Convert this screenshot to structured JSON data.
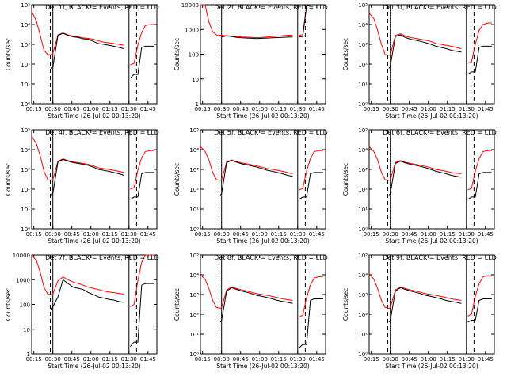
{
  "xlabel": "Start Time (26-Jul-02 00:13:20)",
  "ylabel": "Counts/sec",
  "x_ticks": [
    "00:15",
    "00:30",
    "00:45",
    "01:00",
    "01:15",
    "01:30",
    "01:45"
  ],
  "colors": {
    "events": "#000000",
    "lld": "#ff0000"
  },
  "chart_data": [
    {
      "type": "line",
      "title": "Det 1f, BLACK = Events, RED = LLD",
      "yscale": "log",
      "ylim": [
        1,
        100000
      ],
      "y_ticks": [
        "10⁰",
        "10¹",
        "10²",
        "10³",
        "10⁴",
        "10⁵"
      ],
      "y_tick_values": [
        1,
        10,
        100,
        1000,
        10000,
        100000
      ],
      "x": [
        "00:13",
        "00:17",
        "00:20",
        "00:23",
        "00:26",
        "00:29",
        "00:30",
        "00:34",
        "00:38",
        "00:42",
        "00:46",
        "00:50",
        "00:54",
        "00:58",
        "01:02",
        "01:06",
        "01:10",
        "01:14",
        "01:18",
        "01:22",
        "01:26",
        "01:30",
        "01:31",
        "01:34",
        "01:37",
        "01:40",
        "01:43",
        "01:47",
        "01:50"
      ],
      "series": [
        {
          "name": "Events",
          "color": "#000000",
          "values": [
            null,
            null,
            null,
            null,
            null,
            60,
            70,
            2800,
            3600,
            2800,
            2400,
            2200,
            1900,
            1800,
            1400,
            1100,
            1000,
            900,
            800,
            700,
            600,
            null,
            20,
            30,
            30,
            700,
            800,
            800,
            800
          ]
        },
        {
          "name": "LLD",
          "color": "#ff0000",
          "values": [
            50000,
            15000,
            3000,
            500,
            300,
            300,
            330,
            3000,
            3800,
            3000,
            2600,
            2400,
            2100,
            2000,
            1800,
            1500,
            1300,
            1200,
            1100,
            1000,
            900,
            null,
            90,
            110,
            900,
            4000,
            9000,
            10000,
            10000
          ]
        }
      ]
    },
    {
      "type": "line",
      "title": "Det 2f, BLACK = Events, RED = LLD",
      "yscale": "log",
      "ylim": [
        1,
        10000
      ],
      "y_ticks": [
        "1",
        "10",
        "100",
        "1000",
        "10000"
      ],
      "y_tick_values": [
        1,
        10,
        100,
        1000,
        10000
      ],
      "x": [
        "00:13",
        "00:17",
        "00:20",
        "00:23",
        "00:26",
        "00:29",
        "00:30",
        "00:34",
        "00:38",
        "00:42",
        "00:46",
        "00:50",
        "00:54",
        "00:58",
        "01:02",
        "01:06",
        "01:10",
        "01:14",
        "01:18",
        "01:22",
        "01:26",
        "01:30",
        "01:31",
        "01:34",
        "01:37",
        "01:40",
        "01:43",
        "01:47",
        "01:50"
      ],
      "series": [
        {
          "name": "Events",
          "color": "#000000",
          "values": [
            null,
            null,
            null,
            null,
            null,
            null,
            500,
            550,
            520,
            480,
            460,
            450,
            440,
            430,
            440,
            450,
            460,
            470,
            480,
            490,
            500,
            null,
            500,
            520,
            9000,
            10000,
            10000,
            10000,
            10000
          ]
        },
        {
          "name": "LLD",
          "color": "#ff0000",
          "values": [
            10000,
            10000,
            2000,
            800,
            600,
            580,
            580,
            560,
            540,
            520,
            500,
            490,
            480,
            470,
            480,
            500,
            520,
            540,
            560,
            580,
            600,
            null,
            580,
            620,
            9000,
            10000,
            10000,
            10000,
            10000
          ]
        }
      ]
    },
    {
      "type": "line",
      "title": "Det 3f, BLACK = Events, RED = LLD",
      "yscale": "log",
      "ylim": [
        1,
        100000
      ],
      "y_ticks": [
        "10⁰",
        "10¹",
        "10²",
        "10³",
        "10⁴",
        "10⁵"
      ],
      "y_tick_values": [
        1,
        10,
        100,
        1000,
        10000,
        100000
      ],
      "x": [
        "00:13",
        "00:17",
        "00:20",
        "00:23",
        "00:26",
        "00:29",
        "00:30",
        "00:34",
        "00:38",
        "00:42",
        "00:46",
        "00:50",
        "00:54",
        "00:58",
        "01:02",
        "01:06",
        "01:10",
        "01:14",
        "01:18",
        "01:22",
        "01:26",
        "01:30",
        "01:31",
        "01:34",
        "01:37",
        "01:40",
        "01:43",
        "01:47",
        "01:50"
      ],
      "series": [
        {
          "name": "Events",
          "color": "#000000",
          "values": [
            null,
            null,
            null,
            null,
            null,
            60,
            80,
            2500,
            3000,
            2200,
            1800,
            1600,
            1400,
            1200,
            1000,
            800,
            700,
            600,
            500,
            450,
            400,
            null,
            30,
            40,
            40,
            700,
            800,
            800,
            800
          ]
        },
        {
          "name": "LLD",
          "color": "#ff0000",
          "values": [
            40000,
            20000,
            5000,
            1000,
            300,
            280,
            300,
            2800,
            3400,
            2600,
            2200,
            2000,
            1800,
            1600,
            1400,
            1100,
            1000,
            900,
            800,
            700,
            600,
            null,
            110,
            130,
            1000,
            5000,
            10000,
            12000,
            12000
          ]
        }
      ]
    },
    {
      "type": "line",
      "title": "Det 4f, BLACK = Events, RED = LLD",
      "yscale": "log",
      "ylim": [
        1,
        100000
      ],
      "y_ticks": [
        "10⁰",
        "10¹",
        "10²",
        "10³",
        "10⁴",
        "10⁵"
      ],
      "y_tick_values": [
        1,
        10,
        100,
        1000,
        10000,
        100000
      ],
      "x": [
        "00:13",
        "00:17",
        "00:20",
        "00:23",
        "00:26",
        "00:29",
        "00:30",
        "00:34",
        "00:38",
        "00:42",
        "00:46",
        "00:50",
        "00:54",
        "00:58",
        "01:02",
        "01:06",
        "01:10",
        "01:14",
        "01:18",
        "01:22",
        "01:26",
        "01:30",
        "01:31",
        "01:34",
        "01:37",
        "01:40",
        "01:43",
        "01:47",
        "01:50"
      ],
      "series": [
        {
          "name": "Events",
          "color": "#000000",
          "values": [
            null,
            null,
            null,
            null,
            null,
            50,
            60,
            2400,
            3200,
            2600,
            2200,
            2000,
            1800,
            1600,
            1300,
            1000,
            900,
            800,
            700,
            600,
            500,
            null,
            30,
            40,
            40,
            600,
            700,
            700,
            700
          ]
        },
        {
          "name": "LLD",
          "color": "#ff0000",
          "values": [
            50000,
            20000,
            5000,
            800,
            300,
            280,
            300,
            2600,
            3400,
            2800,
            2400,
            2200,
            2000,
            1800,
            1500,
            1200,
            1100,
            1000,
            900,
            800,
            700,
            null,
            100,
            120,
            900,
            4000,
            8000,
            9000,
            9000
          ]
        }
      ]
    },
    {
      "type": "line",
      "title": "Det 5f, BLACK = Events, RED = LLD",
      "yscale": "log",
      "ylim": [
        1,
        100000
      ],
      "y_ticks": [
        "10⁰",
        "10¹",
        "10²",
        "10³",
        "10⁴",
        "10⁵"
      ],
      "y_tick_values": [
        1,
        10,
        100,
        1000,
        10000,
        100000
      ],
      "x": [
        "00:13",
        "00:17",
        "00:20",
        "00:23",
        "00:26",
        "00:29",
        "00:30",
        "00:34",
        "00:38",
        "00:42",
        "00:46",
        "00:50",
        "00:54",
        "00:58",
        "01:02",
        "01:06",
        "01:10",
        "01:14",
        "01:18",
        "01:22",
        "01:26",
        "01:30",
        "01:31",
        "01:34",
        "01:37",
        "01:40",
        "01:43",
        "01:47",
        "01:50"
      ],
      "series": [
        {
          "name": "Events",
          "color": "#000000",
          "values": [
            null,
            null,
            null,
            null,
            null,
            50,
            60,
            2200,
            2800,
            2300,
            1900,
            1700,
            1500,
            1300,
            1100,
            900,
            800,
            700,
            600,
            500,
            450,
            null,
            30,
            40,
            40,
            600,
            700,
            700,
            700
          ]
        },
        {
          "name": "LLD",
          "color": "#ff0000",
          "values": [
            15000,
            8000,
            3000,
            700,
            300,
            280,
            300,
            2400,
            3000,
            2500,
            2100,
            1900,
            1700,
            1500,
            1300,
            1100,
            1000,
            900,
            800,
            700,
            600,
            null,
            90,
            110,
            800,
            3500,
            8000,
            9000,
            9000
          ]
        }
      ]
    },
    {
      "type": "line",
      "title": "Det 6f, BLACK = Events, RED = LLD",
      "yscale": "log",
      "ylim": [
        1,
        100000
      ],
      "y_ticks": [
        "10⁰",
        "10¹",
        "10²",
        "10³",
        "10⁴",
        "10⁵"
      ],
      "y_tick_values": [
        1,
        10,
        100,
        1000,
        10000,
        100000
      ],
      "x": [
        "00:13",
        "00:17",
        "00:20",
        "00:23",
        "00:26",
        "00:29",
        "00:30",
        "00:34",
        "00:38",
        "00:42",
        "00:46",
        "00:50",
        "00:54",
        "00:58",
        "01:02",
        "01:06",
        "01:10",
        "01:14",
        "01:18",
        "01:22",
        "01:26",
        "01:30",
        "01:31",
        "01:34",
        "01:37",
        "01:40",
        "01:43",
        "01:47",
        "01:50"
      ],
      "series": [
        {
          "name": "Events",
          "color": "#000000",
          "values": [
            null,
            null,
            null,
            null,
            null,
            50,
            60,
            2000,
            2600,
            2100,
            1800,
            1600,
            1400,
            1200,
            1000,
            800,
            700,
            600,
            500,
            450,
            400,
            null,
            30,
            40,
            40,
            600,
            700,
            700,
            700
          ]
        },
        {
          "name": "LLD",
          "color": "#ff0000",
          "values": [
            15000,
            8000,
            3000,
            700,
            300,
            280,
            300,
            2200,
            2800,
            2300,
            2000,
            1800,
            1600,
            1400,
            1200,
            1000,
            900,
            800,
            700,
            650,
            600,
            null,
            90,
            110,
            800,
            3500,
            8000,
            9000,
            9000
          ]
        }
      ]
    },
    {
      "type": "line",
      "title": "Det 7f, BLACK = Events, RED = LLD",
      "yscale": "log",
      "ylim": [
        1,
        10000
      ],
      "y_ticks": [
        "1",
        "10",
        "100",
        "1000",
        "10000"
      ],
      "y_tick_values": [
        1,
        10,
        100,
        1000,
        10000
      ],
      "x": [
        "00:13",
        "00:17",
        "00:20",
        "00:23",
        "00:26",
        "00:29",
        "00:30",
        "00:34",
        "00:38",
        "00:42",
        "00:46",
        "00:50",
        "00:54",
        "00:58",
        "01:02",
        "01:06",
        "01:10",
        "01:14",
        "01:18",
        "01:22",
        "01:26",
        "01:30",
        "01:31",
        "01:34",
        "01:37",
        "01:40",
        "01:43",
        "01:47",
        "01:50"
      ],
      "series": [
        {
          "name": "Events",
          "color": "#000000",
          "values": [
            null,
            null,
            null,
            null,
            null,
            60,
            80,
            200,
            1000,
            700,
            500,
            450,
            400,
            300,
            250,
            200,
            180,
            160,
            150,
            130,
            120,
            null,
            2,
            3,
            3,
            600,
            700,
            700,
            700
          ]
        },
        {
          "name": "LLD",
          "color": "#ff0000",
          "values": [
            10000,
            6000,
            2000,
            500,
            260,
            250,
            260,
            900,
            1300,
            1000,
            800,
            700,
            600,
            500,
            450,
            400,
            350,
            320,
            300,
            280,
            260,
            null,
            80,
            100,
            900,
            5000,
            10000,
            10000,
            10000
          ]
        }
      ]
    },
    {
      "type": "line",
      "title": "Det 8f, BLACK = Events, RED = LLD",
      "yscale": "log",
      "ylim": [
        1,
        100000
      ],
      "y_ticks": [
        "10⁰",
        "10¹",
        "10²",
        "10³",
        "10⁴",
        "10⁵"
      ],
      "y_tick_values": [
        1,
        10,
        100,
        1000,
        10000,
        100000
      ],
      "x": [
        "00:13",
        "00:17",
        "00:20",
        "00:23",
        "00:26",
        "00:29",
        "00:30",
        "00:34",
        "00:38",
        "00:42",
        "00:46",
        "00:50",
        "00:54",
        "00:58",
        "01:02",
        "01:06",
        "01:10",
        "01:14",
        "01:18",
        "01:22",
        "01:26",
        "01:30",
        "01:31",
        "01:34",
        "01:37",
        "01:40",
        "01:43",
        "01:47",
        "01:50"
      ],
      "series": [
        {
          "name": "Events",
          "color": "#000000",
          "values": [
            null,
            null,
            null,
            null,
            null,
            40,
            50,
            1500,
            2200,
            1800,
            1500,
            1300,
            1100,
            900,
            800,
            700,
            600,
            500,
            450,
            400,
            350,
            null,
            2,
            3,
            3,
            500,
            600,
            600,
            600
          ]
        },
        {
          "name": "LLD",
          "color": "#ff0000",
          "values": [
            10000,
            6000,
            2000,
            500,
            220,
            200,
            220,
            1700,
            2400,
            2000,
            1700,
            1500,
            1300,
            1100,
            1000,
            900,
            800,
            700,
            600,
            550,
            500,
            null,
            70,
            90,
            700,
            3000,
            7000,
            8000,
            8000
          ]
        }
      ]
    },
    {
      "type": "line",
      "title": "Det 9f, BLACK = Events, RED = LLD",
      "yscale": "log",
      "ylim": [
        1,
        100000
      ],
      "y_ticks": [
        "10⁰",
        "10¹",
        "10²",
        "10³",
        "10⁴",
        "10⁵"
      ],
      "y_tick_values": [
        1,
        10,
        100,
        1000,
        10000,
        100000
      ],
      "x": [
        "00:13",
        "00:17",
        "00:20",
        "00:23",
        "00:26",
        "00:29",
        "00:30",
        "00:34",
        "00:38",
        "00:42",
        "00:46",
        "00:50",
        "00:54",
        "00:58",
        "01:02",
        "01:06",
        "01:10",
        "01:14",
        "01:18",
        "01:22",
        "01:26",
        "01:30",
        "01:31",
        "01:34",
        "01:37",
        "01:40",
        "01:43",
        "01:47",
        "01:50"
      ],
      "series": [
        {
          "name": "Events",
          "color": "#000000",
          "values": [
            null,
            null,
            null,
            null,
            null,
            40,
            50,
            1500,
            2200,
            1800,
            1500,
            1300,
            1100,
            900,
            800,
            700,
            600,
            500,
            450,
            400,
            350,
            null,
            40,
            50,
            50,
            500,
            600,
            600,
            600
          ]
        },
        {
          "name": "LLD",
          "color": "#ff0000",
          "values": [
            12000,
            6000,
            2000,
            500,
            220,
            200,
            220,
            1700,
            2400,
            2000,
            1700,
            1500,
            1300,
            1100,
            1000,
            900,
            800,
            700,
            600,
            550,
            500,
            null,
            80,
            100,
            800,
            3500,
            8000,
            9000,
            9000
          ]
        }
      ]
    }
  ]
}
